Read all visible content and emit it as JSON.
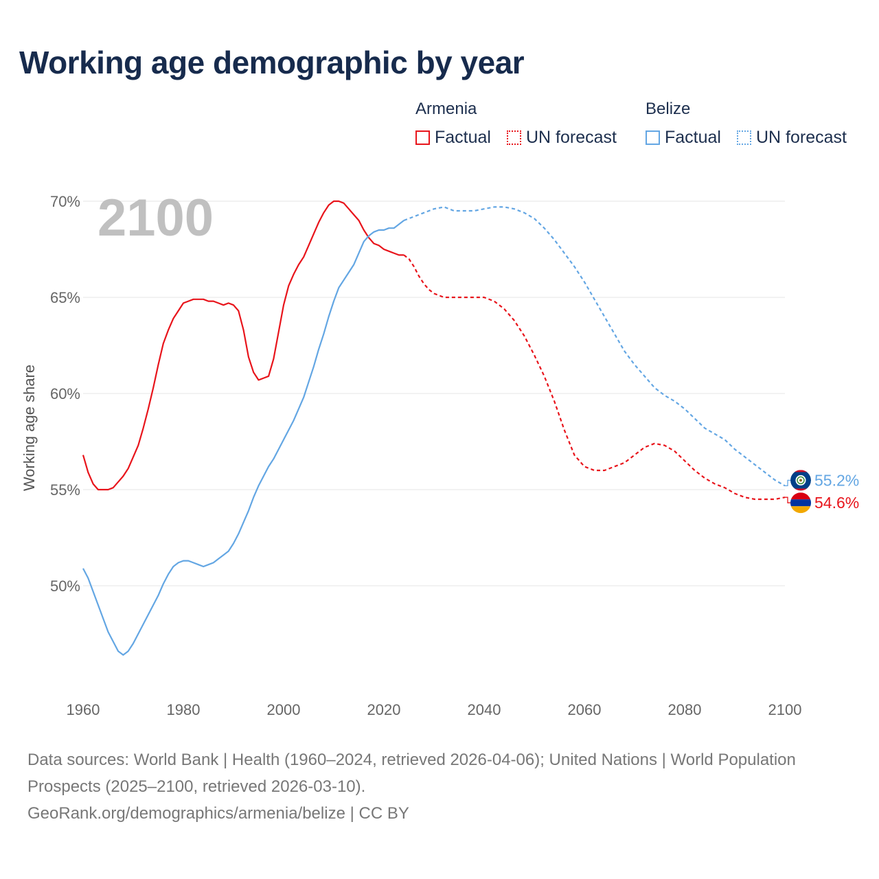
{
  "title": "Working age demographic by year",
  "legend": {
    "armenia": {
      "name": "Armenia",
      "factual": "Factual",
      "forecast": "UN forecast"
    },
    "belize": {
      "name": "Belize",
      "factual": "Factual",
      "forecast": "UN forecast"
    }
  },
  "colors": {
    "armenia": "#e8141b",
    "belize": "#63a6e3",
    "grid": "#e6e6e6"
  },
  "footer": {
    "sources": "Data sources: World Bank | Health (1960–2024, retrieved 2026-04-06); United Nations | World Population Prospects (2025–2100, retrieved 2026-03-10).",
    "credit": "GeoRank.org/demographics/armenia/belize | CC BY"
  },
  "chart_data": {
    "type": "line",
    "ylabel": "Working age share",
    "xlim": [
      1960,
      2100
    ],
    "ylim": [
      45.5,
      70.5
    ],
    "year_watermark": "2100",
    "x_ticks": [
      "1960",
      "1980",
      "2000",
      "2020",
      "2040",
      "2060",
      "2080",
      "2100"
    ],
    "y_ticks": [
      {
        "value": 50,
        "label": "50%"
      },
      {
        "value": 55,
        "label": "55%"
      },
      {
        "value": 60,
        "label": "60%"
      },
      {
        "value": 65,
        "label": "65%"
      },
      {
        "value": 70,
        "label": "70%"
      }
    ],
    "series": [
      {
        "name": "Armenia",
        "key": "armenia",
        "end_label": "54.6%",
        "factual": [
          [
            1960,
            56.8
          ],
          [
            1961,
            55.9
          ],
          [
            1962,
            55.3
          ],
          [
            1963,
            55.0
          ],
          [
            1964,
            55.0
          ],
          [
            1965,
            55.0
          ],
          [
            1966,
            55.1
          ],
          [
            1967,
            55.4
          ],
          [
            1968,
            55.7
          ],
          [
            1969,
            56.1
          ],
          [
            1970,
            56.7
          ],
          [
            1971,
            57.3
          ],
          [
            1972,
            58.2
          ],
          [
            1973,
            59.2
          ],
          [
            1974,
            60.3
          ],
          [
            1975,
            61.5
          ],
          [
            1976,
            62.6
          ],
          [
            1977,
            63.3
          ],
          [
            1978,
            63.9
          ],
          [
            1979,
            64.3
          ],
          [
            1980,
            64.7
          ],
          [
            1981,
            64.8
          ],
          [
            1982,
            64.9
          ],
          [
            1983,
            64.9
          ],
          [
            1984,
            64.9
          ],
          [
            1985,
            64.8
          ],
          [
            1986,
            64.8
          ],
          [
            1987,
            64.7
          ],
          [
            1988,
            64.6
          ],
          [
            1989,
            64.7
          ],
          [
            1990,
            64.6
          ],
          [
            1991,
            64.3
          ],
          [
            1992,
            63.3
          ],
          [
            1993,
            61.9
          ],
          [
            1994,
            61.1
          ],
          [
            1995,
            60.7
          ],
          [
            1996,
            60.8
          ],
          [
            1997,
            60.9
          ],
          [
            1998,
            61.8
          ],
          [
            1999,
            63.2
          ],
          [
            2000,
            64.6
          ],
          [
            2001,
            65.6
          ],
          [
            2002,
            66.2
          ],
          [
            2003,
            66.7
          ],
          [
            2004,
            67.1
          ],
          [
            2005,
            67.7
          ],
          [
            2006,
            68.3
          ],
          [
            2007,
            68.9
          ],
          [
            2008,
            69.4
          ],
          [
            2009,
            69.8
          ],
          [
            2010,
            70.0
          ],
          [
            2011,
            70.0
          ],
          [
            2012,
            69.9
          ],
          [
            2013,
            69.6
          ],
          [
            2014,
            69.3
          ],
          [
            2015,
            69.0
          ],
          [
            2016,
            68.5
          ],
          [
            2017,
            68.1
          ],
          [
            2018,
            67.8
          ],
          [
            2019,
            67.7
          ],
          [
            2020,
            67.5
          ],
          [
            2021,
            67.4
          ],
          [
            2022,
            67.3
          ],
          [
            2023,
            67.2
          ],
          [
            2024,
            67.2
          ]
        ],
        "forecast": [
          [
            2024,
            67.2
          ],
          [
            2025,
            67.0
          ],
          [
            2026,
            66.6
          ],
          [
            2027,
            66.1
          ],
          [
            2028,
            65.7
          ],
          [
            2029,
            65.4
          ],
          [
            2030,
            65.2
          ],
          [
            2031,
            65.1
          ],
          [
            2032,
            65.0
          ],
          [
            2033,
            65.0
          ],
          [
            2035,
            65.0
          ],
          [
            2038,
            65.0
          ],
          [
            2040,
            65.0
          ],
          [
            2042,
            64.8
          ],
          [
            2044,
            64.4
          ],
          [
            2046,
            63.8
          ],
          [
            2048,
            63.0
          ],
          [
            2050,
            62.0
          ],
          [
            2052,
            60.9
          ],
          [
            2054,
            59.6
          ],
          [
            2056,
            58.1
          ],
          [
            2058,
            56.8
          ],
          [
            2060,
            56.2
          ],
          [
            2062,
            56.0
          ],
          [
            2064,
            56.0
          ],
          [
            2066,
            56.2
          ],
          [
            2068,
            56.4
          ],
          [
            2070,
            56.8
          ],
          [
            2072,
            57.2
          ],
          [
            2074,
            57.4
          ],
          [
            2076,
            57.3
          ],
          [
            2078,
            57.0
          ],
          [
            2080,
            56.5
          ],
          [
            2082,
            56.0
          ],
          [
            2084,
            55.6
          ],
          [
            2086,
            55.3
          ],
          [
            2088,
            55.1
          ],
          [
            2090,
            54.8
          ],
          [
            2092,
            54.6
          ],
          [
            2094,
            54.5
          ],
          [
            2096,
            54.5
          ],
          [
            2098,
            54.5
          ],
          [
            2100,
            54.6
          ]
        ]
      },
      {
        "name": "Belize",
        "key": "belize",
        "end_label": "55.2%",
        "factual": [
          [
            1960,
            50.9
          ],
          [
            1961,
            50.4
          ],
          [
            1962,
            49.7
          ],
          [
            1963,
            49.0
          ],
          [
            1964,
            48.3
          ],
          [
            1965,
            47.6
          ],
          [
            1966,
            47.1
          ],
          [
            1967,
            46.6
          ],
          [
            1968,
            46.4
          ],
          [
            1969,
            46.6
          ],
          [
            1970,
            47.0
          ],
          [
            1971,
            47.5
          ],
          [
            1972,
            48.0
          ],
          [
            1973,
            48.5
          ],
          [
            1974,
            49.0
          ],
          [
            1975,
            49.5
          ],
          [
            1976,
            50.1
          ],
          [
            1977,
            50.6
          ],
          [
            1978,
            51.0
          ],
          [
            1979,
            51.2
          ],
          [
            1980,
            51.3
          ],
          [
            1981,
            51.3
          ],
          [
            1982,
            51.2
          ],
          [
            1983,
            51.1
          ],
          [
            1984,
            51.0
          ],
          [
            1985,
            51.1
          ],
          [
            1986,
            51.2
          ],
          [
            1987,
            51.4
          ],
          [
            1988,
            51.6
          ],
          [
            1989,
            51.8
          ],
          [
            1990,
            52.2
          ],
          [
            1991,
            52.7
          ],
          [
            1992,
            53.3
          ],
          [
            1993,
            53.9
          ],
          [
            1994,
            54.6
          ],
          [
            1995,
            55.2
          ],
          [
            1996,
            55.7
          ],
          [
            1997,
            56.2
          ],
          [
            1998,
            56.6
          ],
          [
            1999,
            57.1
          ],
          [
            2000,
            57.6
          ],
          [
            2001,
            58.1
          ],
          [
            2002,
            58.6
          ],
          [
            2003,
            59.2
          ],
          [
            2004,
            59.8
          ],
          [
            2005,
            60.6
          ],
          [
            2006,
            61.4
          ],
          [
            2007,
            62.3
          ],
          [
            2008,
            63.1
          ],
          [
            2009,
            64.0
          ],
          [
            2010,
            64.8
          ],
          [
            2011,
            65.5
          ],
          [
            2012,
            65.9
          ],
          [
            2013,
            66.3
          ],
          [
            2014,
            66.7
          ],
          [
            2015,
            67.3
          ],
          [
            2016,
            67.9
          ],
          [
            2017,
            68.2
          ],
          [
            2018,
            68.4
          ],
          [
            2019,
            68.5
          ],
          [
            2020,
            68.5
          ],
          [
            2021,
            68.6
          ],
          [
            2022,
            68.6
          ],
          [
            2023,
            68.8
          ],
          [
            2024,
            69.0
          ]
        ],
        "forecast": [
          [
            2024,
            69.0
          ],
          [
            2026,
            69.2
          ],
          [
            2028,
            69.4
          ],
          [
            2030,
            69.6
          ],
          [
            2032,
            69.7
          ],
          [
            2034,
            69.5
          ],
          [
            2036,
            69.5
          ],
          [
            2038,
            69.5
          ],
          [
            2040,
            69.6
          ],
          [
            2042,
            69.7
          ],
          [
            2044,
            69.7
          ],
          [
            2046,
            69.6
          ],
          [
            2048,
            69.4
          ],
          [
            2050,
            69.1
          ],
          [
            2052,
            68.6
          ],
          [
            2054,
            68.0
          ],
          [
            2056,
            67.3
          ],
          [
            2058,
            66.6
          ],
          [
            2060,
            65.8
          ],
          [
            2062,
            64.9
          ],
          [
            2064,
            64.0
          ],
          [
            2066,
            63.1
          ],
          [
            2068,
            62.2
          ],
          [
            2070,
            61.5
          ],
          [
            2072,
            60.9
          ],
          [
            2074,
            60.3
          ],
          [
            2076,
            59.9
          ],
          [
            2078,
            59.6
          ],
          [
            2080,
            59.2
          ],
          [
            2082,
            58.7
          ],
          [
            2084,
            58.2
          ],
          [
            2086,
            57.9
          ],
          [
            2088,
            57.6
          ],
          [
            2090,
            57.1
          ],
          [
            2092,
            56.7
          ],
          [
            2094,
            56.3
          ],
          [
            2096,
            55.9
          ],
          [
            2098,
            55.5
          ],
          [
            2100,
            55.2
          ]
        ]
      }
    ]
  }
}
